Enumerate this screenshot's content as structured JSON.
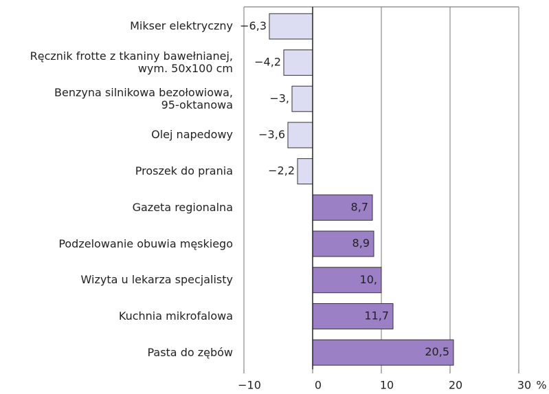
{
  "chart_data": {
    "type": "barh",
    "categories": [
      "Mikser elektryczny",
      "Ręcznik frotte z tkaniny bawełnianej,\nwym. 50x100 cm",
      "Benzyna silnikowa bezołowiowa,\n95-oktanowa",
      "Olej napedowy",
      "Proszek do prania",
      "Gazeta regionalna",
      "Podzelowanie obuwia męskiego",
      "Wizyta u lekarza specjalisty",
      "Kuchnia mikrofalowa",
      "Pasta do zębów"
    ],
    "values": [
      -6.3,
      -4.2,
      -3,
      -3.6,
      -2.2,
      8.7,
      8.9,
      10,
      11.7,
      20.5
    ],
    "value_labels": [
      "−6,3",
      "−4,2",
      "−3,",
      "−3,6",
      "−2,2",
      "8,7",
      "8,9",
      "10,",
      "11,7",
      "20,5"
    ],
    "colors": [
      "#dcdcf2",
      "#dcdcf2",
      "#dcdcf2",
      "#dcdcf2",
      "#dcdcf2",
      "#9b80c6",
      "#9b80c6",
      "#9b80c6",
      "#9b80c6",
      "#9b80c6"
    ],
    "xlabel": "%",
    "xlim": [
      -10,
      30
    ],
    "xticks": [
      {
        "value": -10,
        "label": "−10"
      },
      0,
      10,
      20,
      30
    ],
    "grid": true
  }
}
